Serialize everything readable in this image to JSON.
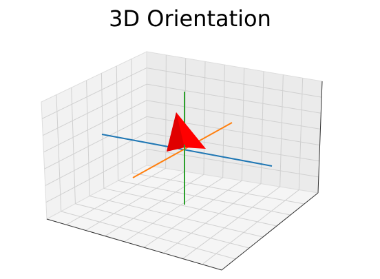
{
  "title": "3D Orientation"
}
